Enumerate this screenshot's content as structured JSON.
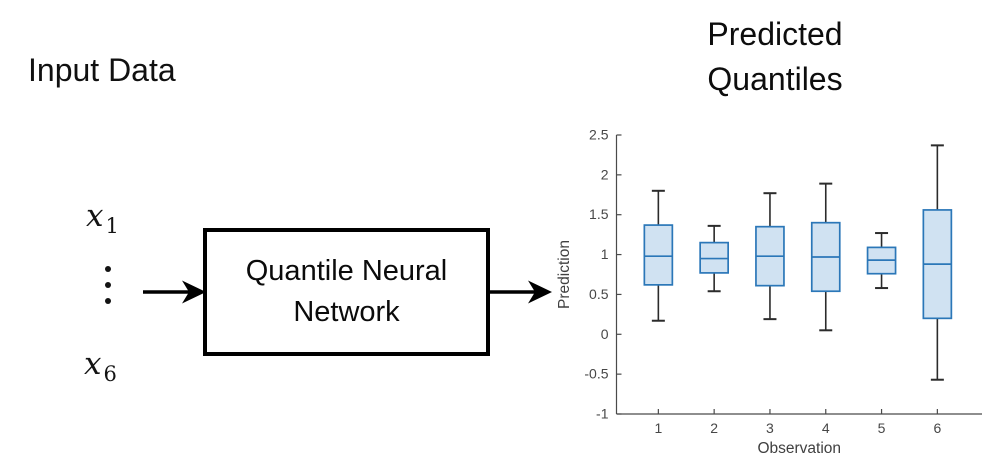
{
  "input": {
    "label": "Input Data",
    "x1_base": "x",
    "x1_sub": "1",
    "x6_base": "x",
    "x6_sub": "6"
  },
  "qnn_box": {
    "line1": "Quantile Neural",
    "line2": "Network"
  },
  "output_title": {
    "line1": "Predicted",
    "line2": "Quantiles"
  },
  "chart_data": {
    "type": "boxplot",
    "title": "Predicted Quantiles",
    "xlabel": "Observation",
    "ylabel": "Prediction",
    "categories": [
      1,
      2,
      3,
      4,
      5,
      6
    ],
    "xlim": [
      0.25,
      6.8
    ],
    "ylim": [
      -1,
      2.5
    ],
    "yticks": [
      -1,
      -0.5,
      0,
      0.5,
      1,
      1.5,
      2,
      2.5
    ],
    "grid": false,
    "legend": "none",
    "boxes": [
      {
        "x": 1,
        "whisker_low": 0.17,
        "q1": 0.62,
        "median": 0.98,
        "q3": 1.37,
        "whisker_high": 1.8
      },
      {
        "x": 2,
        "whisker_low": 0.54,
        "q1": 0.77,
        "median": 0.95,
        "q3": 1.15,
        "whisker_high": 1.36
      },
      {
        "x": 3,
        "whisker_low": 0.19,
        "q1": 0.61,
        "median": 0.98,
        "q3": 1.35,
        "whisker_high": 1.77
      },
      {
        "x": 4,
        "whisker_low": 0.05,
        "q1": 0.54,
        "median": 0.97,
        "q3": 1.4,
        "whisker_high": 1.89
      },
      {
        "x": 5,
        "whisker_low": 0.58,
        "q1": 0.76,
        "median": 0.93,
        "q3": 1.09,
        "whisker_high": 1.27
      },
      {
        "x": 6,
        "whisker_low": -0.57,
        "q1": 0.2,
        "median": 0.88,
        "q3": 1.56,
        "whisker_high": 2.37
      }
    ],
    "colors": {
      "box_fill": "#d0e2f2",
      "box_edge": "#2b77b8",
      "median": "#2b77b8",
      "whisker": "#2b2b2b",
      "axis": "#4a4a4a",
      "tick_label": "#474747",
      "axis_label": "#404040"
    }
  }
}
